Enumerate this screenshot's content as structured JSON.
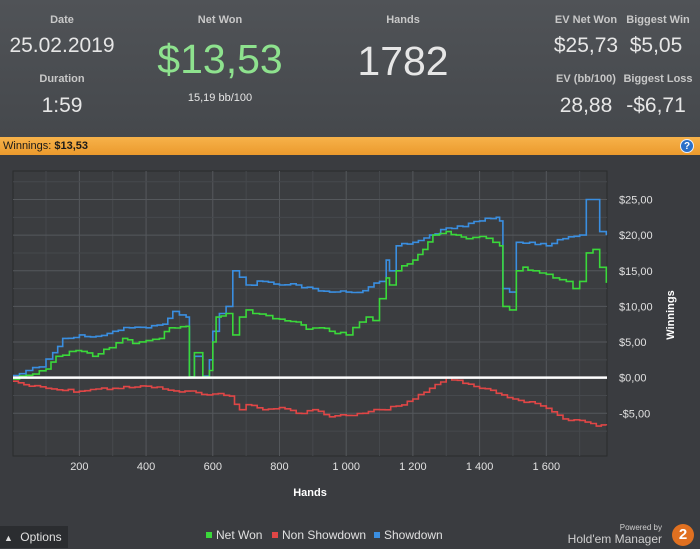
{
  "stats": {
    "date_label": "Date",
    "date_value": "25.02.2019",
    "duration_label": "Duration",
    "duration_value": "1:59",
    "netwon_label": "Net Won",
    "netwon_value": "$13,53",
    "bb100": "15,19 bb/100",
    "hands_label": "Hands",
    "hands_value": "1782",
    "evnet_label": "EV Net Won",
    "evnet_value": "$25,73",
    "bigwin_label": "Biggest Win",
    "bigwin_value": "$5,05",
    "evbb_label": "EV (bb/100)",
    "evbb_value": "28,88",
    "bigloss_label": "Biggest Loss",
    "bigloss_value": "-$6,71"
  },
  "bar": {
    "text_prefix": "Winnings:",
    "text_value": "$13,53",
    "help": "?"
  },
  "footer": {
    "options": "Options",
    "powered": "Powered by",
    "brand": "Hold'em Manager",
    "logo": "2"
  },
  "colors": {
    "net": "#3ad83a",
    "nonsd": "#e04646",
    "sd": "#3a8ee0",
    "zero": "#ffffff"
  },
  "chart_data": {
    "type": "line",
    "xlabel": "Hands",
    "ylabel": "Winnings",
    "xlim": [
      1,
      1782
    ],
    "ylim": [
      -11,
      29
    ],
    "xticks": [
      200,
      400,
      600,
      800,
      1000,
      1200,
      1400,
      1600
    ],
    "xtick_labels": [
      "200",
      "400",
      "600",
      "800",
      "1 000",
      "1 200",
      "1 400",
      "1 600"
    ],
    "yticks": [
      -5,
      0,
      5,
      10,
      15,
      20,
      25
    ],
    "ytick_labels": [
      "-$5,00",
      "$0,00",
      "$5,00",
      "$10,00",
      "$15,00",
      "$20,00",
      "$25,00"
    ],
    "grid": true,
    "legend_position": "bottom",
    "series": [
      {
        "name": "Net Won",
        "x": [
          1,
          60,
          100,
          130,
          190,
          240,
          290,
          330,
          360,
          400,
          440,
          470,
          520,
          530,
          545,
          570,
          590,
          600,
          610,
          640,
          660,
          680,
          700,
          720,
          760,
          800,
          850,
          880,
          920,
          950,
          1000,
          1060,
          1080,
          1120,
          1130,
          1150,
          1200,
          1230,
          1260,
          1300,
          1330,
          1360,
          1400,
          1440,
          1460,
          1470,
          1490,
          1510,
          1530,
          1560,
          1600,
          1620,
          1660,
          1680,
          1700,
          1720,
          1740,
          1780
        ],
        "y": [
          -0.2,
          0.5,
          1.2,
          3.0,
          3.8,
          3.0,
          4.2,
          5.5,
          4.8,
          5.2,
          5.5,
          7.0,
          7.2,
          0.1,
          3.5,
          0.1,
          1.0,
          5.0,
          8.5,
          9.0,
          6.0,
          8.5,
          9.5,
          9.0,
          8.7,
          8.2,
          7.8,
          6.8,
          7.0,
          6.5,
          6.0,
          8.5,
          8.0,
          14.0,
          13.0,
          15.0,
          16.5,
          18.0,
          20.0,
          20.5,
          20.0,
          19.5,
          19.8,
          19.0,
          18.5,
          10.0,
          9.5,
          15.0,
          15.5,
          15.0,
          14.5,
          14.0,
          13.5,
          12.5,
          13.5,
          17.5,
          18.0,
          13.3
        ]
      },
      {
        "name": "Non Showdown",
        "x": [
          1,
          50,
          100,
          150,
          200,
          250,
          300,
          350,
          400,
          450,
          500,
          550,
          600,
          650,
          680,
          700,
          750,
          800,
          850,
          900,
          950,
          1000,
          1050,
          1100,
          1150,
          1200,
          1250,
          1300,
          1350,
          1400,
          1450,
          1500,
          1550,
          1600,
          1650,
          1700,
          1750,
          1780
        ],
        "y": [
          -0.5,
          -1.2,
          -1.5,
          -1.8,
          -1.9,
          -1.6,
          -1.5,
          -1.4,
          -1.2,
          -1.6,
          -2.0,
          -2.1,
          -2.3,
          -2.6,
          -4.5,
          -3.8,
          -4.5,
          -4.2,
          -5.0,
          -4.5,
          -5.5,
          -5.3,
          -5.0,
          -4.5,
          -4.0,
          -3.0,
          -1.5,
          0.0,
          -0.8,
          -1.5,
          -2.2,
          -3.0,
          -3.4,
          -4.3,
          -5.8,
          -6.0,
          -6.8,
          -6.7
        ]
      },
      {
        "name": "Showdown",
        "x": [
          1,
          40,
          80,
          120,
          150,
          200,
          250,
          300,
          350,
          400,
          450,
          480,
          520,
          530,
          545,
          570,
          590,
          600,
          620,
          640,
          660,
          700,
          750,
          800,
          850,
          900,
          950,
          1000,
          1050,
          1100,
          1120,
          1130,
          1150,
          1200,
          1250,
          1300,
          1350,
          1400,
          1450,
          1460,
          1470,
          1490,
          1510,
          1550,
          1600,
          1650,
          1700,
          1720,
          1740,
          1760,
          1780
        ],
        "y": [
          0.3,
          1.0,
          1.5,
          3.5,
          5.5,
          6.0,
          5.8,
          6.5,
          7.0,
          7.0,
          7.5,
          9.3,
          8.5,
          0.1,
          3.0,
          0.2,
          2.5,
          6.5,
          9.0,
          10.0,
          15.0,
          13.0,
          13.5,
          13.0,
          13.0,
          12.5,
          12.0,
          12.0,
          12.2,
          13.5,
          16.5,
          15.0,
          18.5,
          19.0,
          20.0,
          21.0,
          21.2,
          22.0,
          22.5,
          22.0,
          12.5,
          12.0,
          19.0,
          19.0,
          18.5,
          19.5,
          20.0,
          25.0,
          25.0,
          20.5,
          20.0
        ]
      }
    ]
  }
}
